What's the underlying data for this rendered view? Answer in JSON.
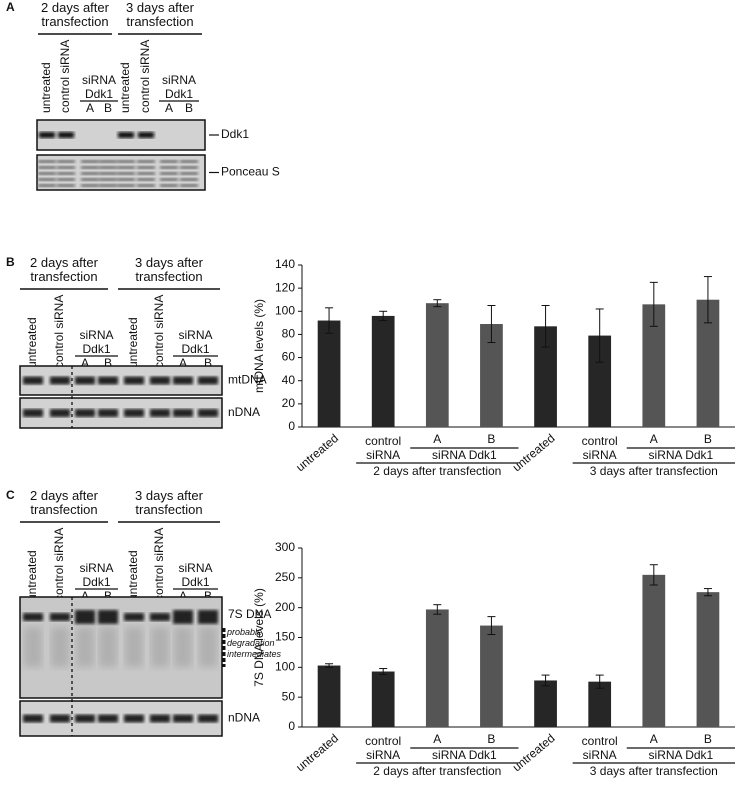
{
  "panels": [
    {
      "label": "A",
      "headers": [
        "2 days after transfection",
        "3 days after transfection"
      ],
      "lane_labels": [
        "untreated",
        "control siRNA",
        "untreated",
        "control siRNA"
      ],
      "sirna_labels": [
        "siRNA Ddk1",
        "siRNA Ddk1"
      ],
      "lane_letters": [
        "A",
        "B",
        "A",
        "B"
      ],
      "band_labels": [
        "Ddk1",
        "Ponceau S"
      ]
    },
    {
      "label": "B",
      "headers": [
        "2 days after transfection",
        "3 days after transfection"
      ],
      "lane_labels": [
        "untreated",
        "control siRNA",
        "untreated",
        "control siRNA"
      ],
      "sirna_labels": [
        "siRNA Ddk1",
        "siRNA Ddk1"
      ],
      "lane_letters": [
        "A",
        "B",
        "A",
        "B"
      ],
      "band_labels": [
        "mtDNA",
        "nDNA"
      ]
    },
    {
      "label": "C",
      "headers": [
        "2 days after transfection",
        "3 days after transfection"
      ],
      "lane_labels": [
        "untreated",
        "control siRNA",
        "untreated",
        "control siRNA"
      ],
      "sirna_labels": [
        "siRNA Ddk1",
        "siRNA Ddk1"
      ],
      "lane_letters": [
        "A",
        "B",
        "A",
        "B"
      ],
      "band_labels": [
        "7S DNA",
        "nDNA"
      ],
      "note": "probable degradation intermediates"
    }
  ],
  "chart_data": [
    {
      "type": "bar",
      "y_label": "mtDNA levels (%)",
      "categories": [
        "untreated",
        "control siRNA",
        "A",
        "B",
        "untreated",
        "control siRNA",
        "A",
        "B"
      ],
      "values": [
        92,
        96,
        107,
        89,
        87,
        79,
        106,
        110
      ],
      "errors": [
        11,
        4,
        3,
        16,
        18,
        23,
        19,
        20
      ],
      "colors": [
        "#262626",
        "#262626",
        "#555555",
        "#555555",
        "#262626",
        "#262626",
        "#555555",
        "#555555"
      ],
      "x_groups": [
        "siRNA Ddk1",
        "siRNA Ddk1"
      ],
      "x_supergroups": [
        "2 days after transfection",
        "3 days after transfection"
      ],
      "ylim": [
        0,
        140
      ],
      "yticks": [
        0,
        20,
        40,
        60,
        80,
        100,
        120,
        140
      ]
    },
    {
      "type": "bar",
      "y_label": "7S DNA levels (%)",
      "categories": [
        "untreated",
        "control siRNA",
        "A",
        "B",
        "untreated",
        "control siRNA",
        "A",
        "B"
      ],
      "values": [
        103,
        93,
        197,
        170,
        78,
        76,
        255,
        226
      ],
      "errors": [
        3,
        5,
        8,
        15,
        9,
        11,
        17,
        6
      ],
      "colors": [
        "#262626",
        "#262626",
        "#555555",
        "#555555",
        "#262626",
        "#262626",
        "#555555",
        "#555555"
      ],
      "x_groups": [
        "siRNA Ddk1",
        "siRNA Ddk1"
      ],
      "x_supergroups": [
        "2 days after transfection",
        "3 days after transfection"
      ],
      "ylim": [
        0,
        300
      ],
      "yticks": [
        0,
        50,
        100,
        150,
        200,
        250,
        300
      ]
    }
  ]
}
